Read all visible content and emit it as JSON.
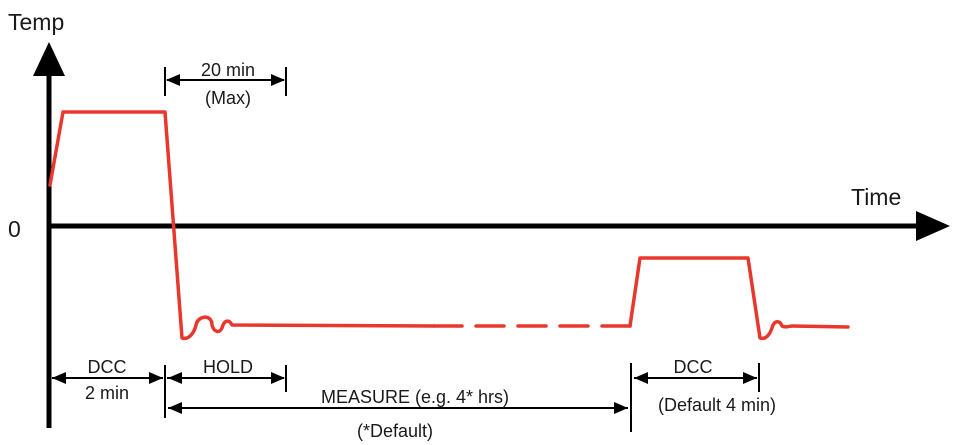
{
  "axes": {
    "y_label": "Temp",
    "x_label": "Time",
    "origin_label": "0"
  },
  "annotations": {
    "hold_max_value": "20 min",
    "hold_max_qualifier": "(Max)",
    "dcc_first_name": "DCC",
    "dcc_first_duration": "2 min",
    "hold_name": "HOLD",
    "measure_label": "MEASURE (e.g. 4* hrs)",
    "measure_note": "(*Default)",
    "dcc_second_name": "DCC",
    "dcc_second_duration": "(Default 4 min)"
  },
  "colors": {
    "axis": "#000000",
    "trace": "#e8382d",
    "annotation": "#000000"
  }
}
